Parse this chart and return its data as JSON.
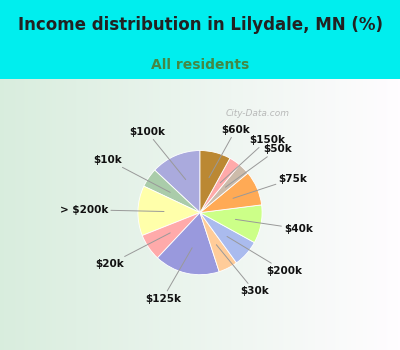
{
  "title": "Income distribution in Lilydale, MN (%)",
  "subtitle": "All residents",
  "watermark": "City-Data.com",
  "labels": [
    "$100k",
    "$10k",
    "> $200k",
    "$20k",
    "$125k",
    "$30k",
    "$200k",
    "$40k",
    "$75k",
    "$50k",
    "$150k",
    "$60k"
  ],
  "values": [
    13,
    5,
    13,
    7,
    17,
    5,
    7,
    10,
    9,
    3,
    3,
    8
  ],
  "colors": [
    "#aaaadd",
    "#aaccaa",
    "#ffffaa",
    "#ffaaaa",
    "#9999dd",
    "#ffcc99",
    "#aabbee",
    "#ccff88",
    "#ffaa55",
    "#ccbbaa",
    "#ffaaaa",
    "#bb8833"
  ],
  "bg_top": "#00eeee",
  "title_color": "#222222",
  "subtitle_color": "#448844",
  "watermark_color": "#aaaaaa",
  "fig_width": 4.0,
  "fig_height": 3.5,
  "dpi": 100,
  "start_angle": 90,
  "title_fontsize": 12,
  "subtitle_fontsize": 10,
  "label_fontsize": 7.5
}
